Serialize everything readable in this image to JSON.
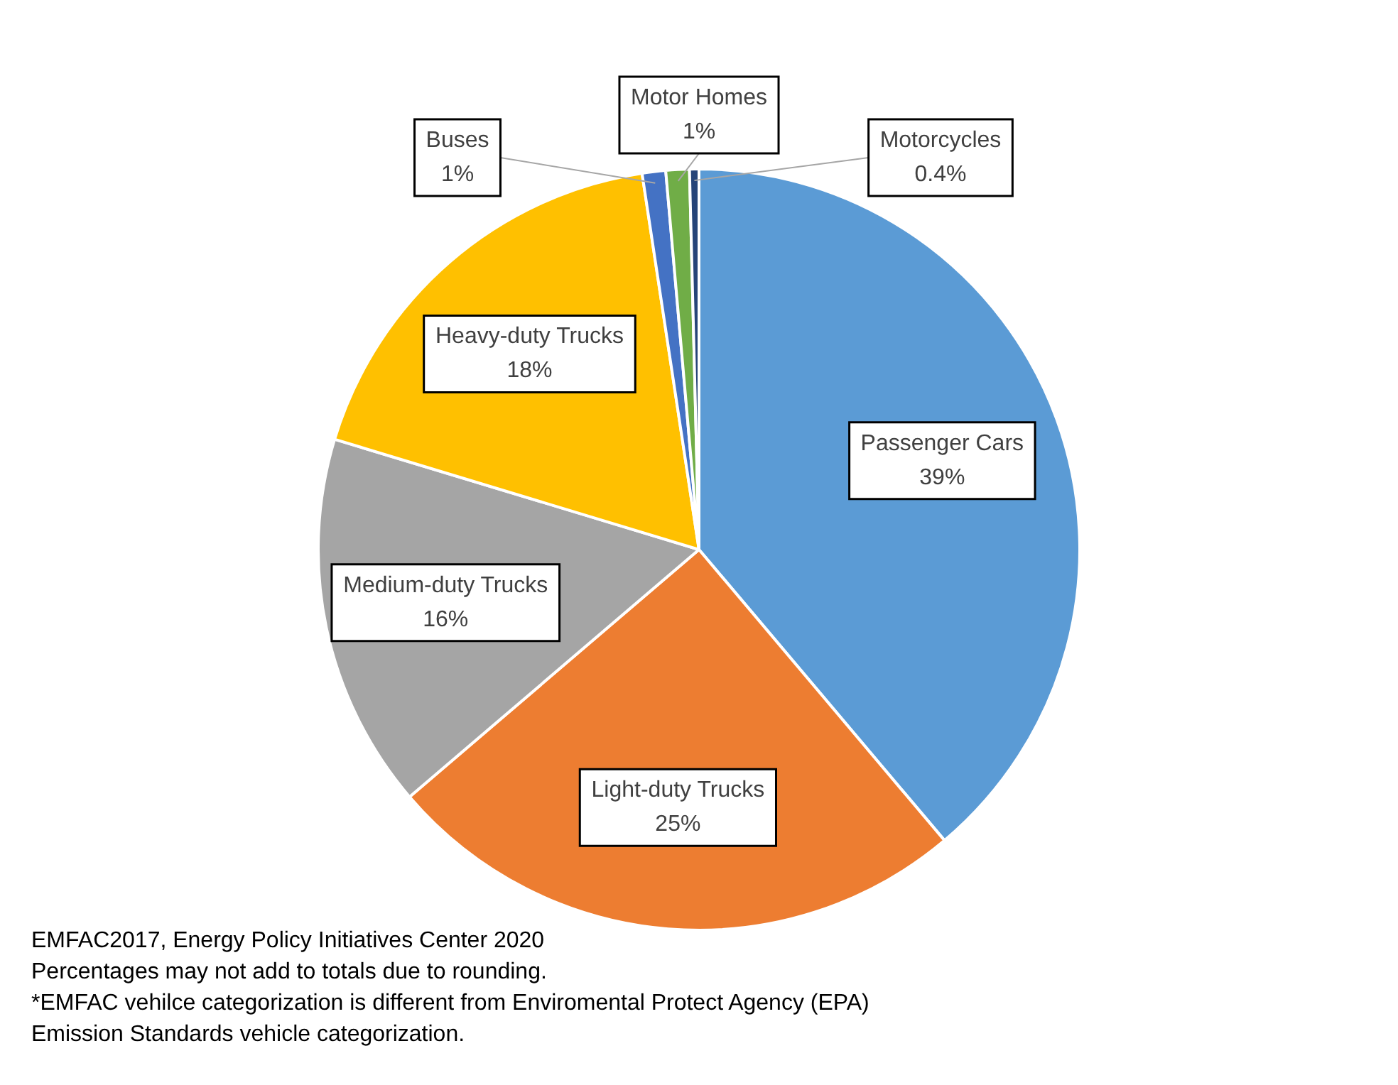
{
  "chart_data": {
    "type": "pie",
    "categories": [
      "Passenger Cars",
      "Light-duty Trucks",
      "Medium-duty Trucks",
      "Heavy-duty Trucks",
      "Buses",
      "Motor Homes",
      "Motorcycles"
    ],
    "values": [
      39,
      25,
      16,
      18,
      1,
      1,
      0.4
    ],
    "value_labels": [
      "39%",
      "25%",
      "16%",
      "18%",
      "1%",
      "1%",
      "0.4%"
    ],
    "colors": [
      "#5b9bd5",
      "#ed7d31",
      "#a5a5a5",
      "#ffc000",
      "#4472c4",
      "#70ad47",
      "#264478"
    ],
    "legend": false,
    "annotations": [
      "EMFAC2017, Energy Policy Initiatives Center 2020",
      "Percentages may not add to totals due to rounding.",
      "*EMFAC vehilce categorization is different from Enviromental Protect Agency (EPA)",
      "Emission Standards vehicle categorization."
    ]
  }
}
